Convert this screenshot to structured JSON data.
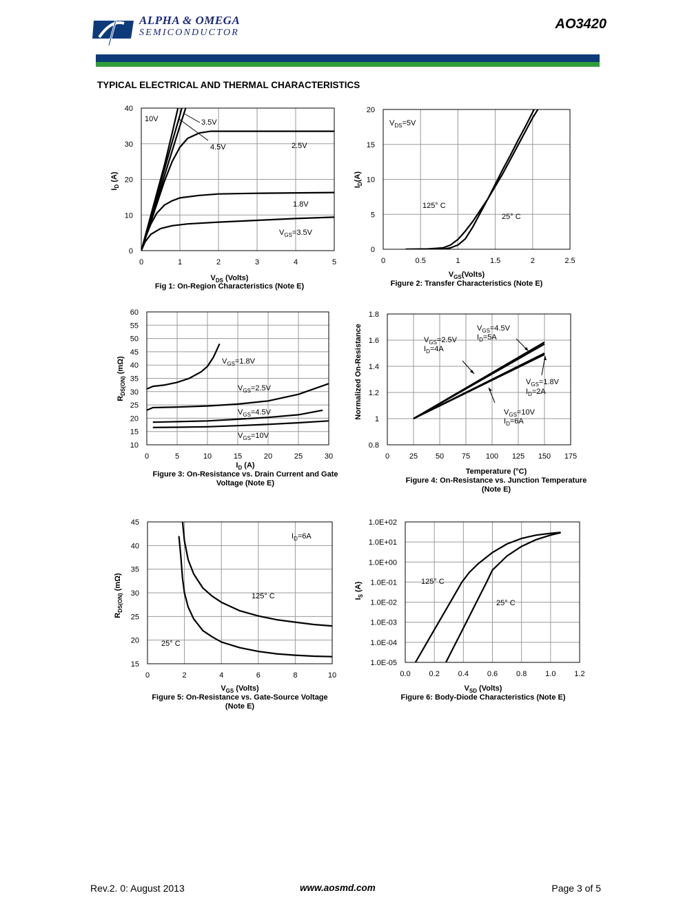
{
  "header": {
    "company_name": "ALPHA & OMEGA",
    "company_sub": "SEMICONDUCTOR",
    "part_number": "AO3420",
    "section_title": "TYPICAL ELECTRICAL AND THERMAL CHARACTERISTICS",
    "brand_blue": "#0d3b7a",
    "brand_green": "#2e9e3a"
  },
  "footer": {
    "revision": "Rev.2. 0: August 2013",
    "website": "www.aosmd.com",
    "page": "Page 3 of 5"
  },
  "chart_data": [
    {
      "id": "fig1",
      "type": "line",
      "caption": "Fig 1: On-Region Characteristics (Note E)",
      "xlabel": "V_DS (Volts)",
      "ylabel": "I_D (A)",
      "xlim": [
        0,
        5
      ],
      "ylim": [
        0,
        40
      ],
      "xticks": [
        0,
        1,
        2,
        3,
        4,
        5
      ],
      "yticks": [
        0,
        10,
        20,
        30,
        40
      ],
      "grid": true,
      "series": [
        {
          "name": "10V",
          "points": [
            [
              0,
              0
            ],
            [
              0.2,
              8
            ],
            [
              0.4,
              16
            ],
            [
              0.6,
              24
            ],
            [
              0.8,
              33
            ],
            [
              0.95,
              40
            ]
          ]
        },
        {
          "name": "4.5V",
          "points": [
            [
              0,
              0
            ],
            [
              0.2,
              7.6
            ],
            [
              0.4,
              15.2
            ],
            [
              0.6,
              22.8
            ],
            [
              0.8,
              30.5
            ],
            [
              1.0,
              38
            ],
            [
              1.05,
              40
            ]
          ]
        },
        {
          "name": "3.5V",
          "points": [
            [
              0,
              0
            ],
            [
              0.2,
              7
            ],
            [
              0.4,
              14
            ],
            [
              0.6,
              21
            ],
            [
              0.8,
              28
            ],
            [
              1.0,
              35
            ],
            [
              1.15,
              40
            ]
          ]
        },
        {
          "name": "2.5V",
          "points": [
            [
              0,
              0
            ],
            [
              0.2,
              6.5
            ],
            [
              0.4,
              13
            ],
            [
              0.6,
              19.5
            ],
            [
              0.8,
              25
            ],
            [
              1.0,
              29
            ],
            [
              1.2,
              31.5
            ],
            [
              1.5,
              33
            ],
            [
              1.8,
              33.5
            ],
            [
              2.5,
              33.5
            ],
            [
              5,
              33.5
            ]
          ]
        },
        {
          "name": "1.8V",
          "points": [
            [
              0,
              0
            ],
            [
              0.1,
              3.5
            ],
            [
              0.25,
              7.5
            ],
            [
              0.4,
              10.5
            ],
            [
              0.6,
              12.8
            ],
            [
              0.8,
              14
            ],
            [
              1.0,
              14.8
            ],
            [
              1.5,
              15.5
            ],
            [
              2,
              15.9
            ],
            [
              3,
              16.1
            ],
            [
              5,
              16.3
            ]
          ]
        },
        {
          "name": "V_GS=3.5V",
          "points": [
            [
              0,
              0
            ],
            [
              0.1,
              2.5
            ],
            [
              0.25,
              4.6
            ],
            [
              0.5,
              6.2
            ],
            [
              0.8,
              7
            ],
            [
              1.2,
              7.5
            ],
            [
              2,
              8
            ],
            [
              3,
              8.5
            ],
            [
              4,
              9
            ],
            [
              5,
              9.4
            ]
          ]
        }
      ],
      "annotations": [
        "10V",
        "3.5V",
        "4.5V",
        "2.5V",
        "1.8V",
        "V_GS=3.5V"
      ]
    },
    {
      "id": "fig2",
      "type": "line",
      "caption": "Figure 2: Transfer Characteristics (Note E)",
      "xlabel": "V_GS(Volts)",
      "ylabel": "I_D(A)",
      "xlim": [
        0,
        2.5
      ],
      "ylim": [
        0,
        20
      ],
      "xticks": [
        0,
        0.5,
        1,
        1.5,
        2,
        2.5
      ],
      "yticks": [
        0,
        5,
        10,
        15,
        20
      ],
      "grid": true,
      "series": [
        {
          "name": "125° C",
          "points": [
            [
              0.3,
              0
            ],
            [
              0.6,
              0.05
            ],
            [
              0.8,
              0.2
            ],
            [
              0.9,
              0.6
            ],
            [
              1.0,
              1.4
            ],
            [
              1.1,
              2.6
            ],
            [
              1.2,
              4
            ],
            [
              1.3,
              5.6
            ],
            [
              1.4,
              7.2
            ],
            [
              1.5,
              9
            ],
            [
              1.6,
              10.8
            ],
            [
              1.7,
              12.8
            ],
            [
              1.8,
              14.8
            ],
            [
              1.9,
              16.8
            ],
            [
              2.0,
              18.8
            ],
            [
              2.07,
              20
            ]
          ]
        },
        {
          "name": "25° C",
          "points": [
            [
              0.3,
              0
            ],
            [
              0.8,
              0
            ],
            [
              0.9,
              0.2
            ],
            [
              1.0,
              0.6
            ],
            [
              1.1,
              1.5
            ],
            [
              1.2,
              3.2
            ],
            [
              1.3,
              5.2
            ],
            [
              1.4,
              7.2
            ],
            [
              1.5,
              9.3
            ],
            [
              1.6,
              11.4
            ],
            [
              1.7,
              13.4
            ],
            [
              1.8,
              15.5
            ],
            [
              1.9,
              17.5
            ],
            [
              2.0,
              19.6
            ],
            [
              2.02,
              20
            ]
          ]
        }
      ],
      "annotations": [
        "V_DS=5V",
        "125° C",
        "25° C"
      ]
    },
    {
      "id": "fig3",
      "type": "line",
      "caption": "Figure 3: On-Resistance vs. Drain Current and Gate Voltage (Note E)",
      "xlabel": "I_D (A)",
      "ylabel": "R_DS(ON) (mΩ)",
      "xlim": [
        0,
        30
      ],
      "ylim": [
        10,
        60
      ],
      "xticks": [
        0,
        5,
        10,
        15,
        20,
        25,
        30
      ],
      "yticks": [
        10,
        15,
        20,
        25,
        30,
        35,
        40,
        45,
        50,
        55,
        60
      ],
      "grid": true,
      "series": [
        {
          "name": "V_GS=1.8V",
          "points": [
            [
              0,
              31
            ],
            [
              1,
              32
            ],
            [
              3,
              32.5
            ],
            [
              5,
              33.5
            ],
            [
              7,
              35
            ],
            [
              9,
              37.5
            ],
            [
              10,
              39.5
            ],
            [
              11,
              43
            ],
            [
              12,
              48
            ]
          ]
        },
        {
          "name": "V_GS=2.5V",
          "points": [
            [
              0,
              23
            ],
            [
              1,
              24
            ],
            [
              5,
              24.2
            ],
            [
              10,
              24.6
            ],
            [
              15,
              25.3
            ],
            [
              20,
              26.5
            ],
            [
              25,
              29
            ],
            [
              30,
              33
            ]
          ]
        },
        {
          "name": "V_GS=4.5V",
          "points": [
            [
              1,
              18.5
            ],
            [
              5,
              18.7
            ],
            [
              10,
              19
            ],
            [
              15,
              19.6
            ],
            [
              20,
              20.3
            ],
            [
              25,
              21.3
            ],
            [
              29,
              23
            ]
          ]
        },
        {
          "name": "V_GS=10V",
          "points": [
            [
              1,
              16.5
            ],
            [
              5,
              16.6
            ],
            [
              10,
              16.8
            ],
            [
              15,
              17.2
            ],
            [
              20,
              17.7
            ],
            [
              25,
              18.3
            ],
            [
              30,
              19
            ]
          ]
        }
      ],
      "annotations": [
        "V_GS=1.8V",
        "V_GS=2.5V",
        "V_GS=4.5V",
        "V_GS=10V"
      ]
    },
    {
      "id": "fig4",
      "type": "line",
      "caption": "Figure 4: On-Resistance vs. Junction Temperature (Note E)",
      "xlabel": "Temperature (°C)",
      "ylabel": "Normalized On-Resistance",
      "xlim": [
        0,
        175
      ],
      "ylim": [
        0.8,
        1.8
      ],
      "xticks": [
        0,
        25,
        50,
        75,
        100,
        125,
        150,
        175
      ],
      "yticks": [
        0.8,
        1,
        1.2,
        1.4,
        1.6,
        1.8
      ],
      "grid": true,
      "series": [
        {
          "name": "V_GS=4.5V, I_D=5A",
          "points": [
            [
              25,
              1.0
            ],
            [
              150,
              1.585
            ]
          ]
        },
        {
          "name": "V_GS=2.5V, I_D=4A",
          "points": [
            [
              25,
              1.0
            ],
            [
              150,
              1.57
            ]
          ]
        },
        {
          "name": "V_GS=1.8V, I_D=2A",
          "points": [
            [
              25,
              1.0
            ],
            [
              150,
              1.5
            ]
          ]
        },
        {
          "name": "V_GS=10V, I_D=6A",
          "points": [
            [
              25,
              1.0
            ],
            [
              150,
              1.49
            ]
          ]
        }
      ],
      "annotations": [
        "V_GS=4.5V",
        "I_D=5A",
        "V_GS=2.5V",
        "I_D=4A",
        "V_GS=1.8V",
        "I_D=2A",
        "V_GS=10V",
        "I_D=6A"
      ]
    },
    {
      "id": "fig5",
      "type": "line",
      "caption": "Figure 5: On-Resistance vs. Gate-Source Voltage (Note E)",
      "xlabel": "V_GS (Volts)",
      "ylabel": "R_DS(ON) (mΩ)",
      "xlim": [
        0,
        10
      ],
      "ylim": [
        15,
        45
      ],
      "xticks": [
        0,
        2,
        4,
        6,
        8,
        10
      ],
      "yticks": [
        15,
        20,
        25,
        30,
        35,
        40,
        45
      ],
      "grid": true,
      "series": [
        {
          "name": "125° C",
          "points": [
            [
              1.9,
              45
            ],
            [
              2.0,
              41
            ],
            [
              2.2,
              37
            ],
            [
              2.5,
              34
            ],
            [
              3,
              31
            ],
            [
              3.5,
              29.3
            ],
            [
              4,
              28
            ],
            [
              5,
              26.2
            ],
            [
              6,
              25.1
            ],
            [
              7,
              24.3
            ],
            [
              8,
              23.8
            ],
            [
              9,
              23.3
            ],
            [
              10,
              23
            ]
          ]
        },
        {
          "name": "25° C",
          "points": [
            [
              1.7,
              42
            ],
            [
              1.8,
              38
            ],
            [
              1.9,
              33
            ],
            [
              2.0,
              30
            ],
            [
              2.2,
              27
            ],
            [
              2.5,
              24.5
            ],
            [
              3,
              22
            ],
            [
              3.5,
              20.7
            ],
            [
              4,
              19.6
            ],
            [
              5,
              18.4
            ],
            [
              6,
              17.6
            ],
            [
              7,
              17.1
            ],
            [
              8,
              16.8
            ],
            [
              9,
              16.6
            ],
            [
              10,
              16.5
            ]
          ]
        }
      ],
      "annotations": [
        "I_D=6A",
        "125° C",
        "25° C"
      ]
    },
    {
      "id": "fig6",
      "type": "line",
      "caption": "Figure 6: Body-Diode Characteristics (Note E)",
      "xlabel": "V_SD (Volts)",
      "ylabel": "I_S (A)",
      "xlim": [
        0,
        1.2
      ],
      "yscale": "log",
      "ylim": [
        1e-05,
        100
      ],
      "xticks": [
        "0.0",
        "0.2",
        "0.4",
        "0.6",
        "0.8",
        "1.0",
        "1.2"
      ],
      "yticks": [
        "1.0E+02",
        "1.0E+01",
        "1.0E+00",
        "1.0E-01",
        "1.0E-02",
        "1.0E-03",
        "1.0E-04",
        "1.0E-05"
      ],
      "grid": true,
      "series": [
        {
          "name": "125° C",
          "points": [
            [
              0.07,
              1e-05
            ],
            [
              0.15,
              0.0001
            ],
            [
              0.23,
              0.001
            ],
            [
              0.31,
              0.01
            ],
            [
              0.39,
              0.1
            ],
            [
              0.44,
              0.3
            ],
            [
              0.5,
              0.8
            ],
            [
              0.6,
              3
            ],
            [
              0.7,
              8
            ],
            [
              0.8,
              15
            ],
            [
              0.9,
              22
            ],
            [
              1.0,
              27
            ],
            [
              1.07,
              30
            ]
          ]
        },
        {
          "name": "25° C",
          "points": [
            [
              0.28,
              1e-05
            ],
            [
              0.35,
              0.0001
            ],
            [
              0.42,
              0.001
            ],
            [
              0.49,
              0.01
            ],
            [
              0.56,
              0.1
            ],
            [
              0.6,
              0.4
            ],
            [
              0.7,
              2
            ],
            [
              0.8,
              6
            ],
            [
              0.9,
              13
            ],
            [
              1.0,
              22
            ],
            [
              1.07,
              29
            ]
          ]
        }
      ],
      "annotations": [
        "125° C",
        "25° C"
      ]
    }
  ]
}
